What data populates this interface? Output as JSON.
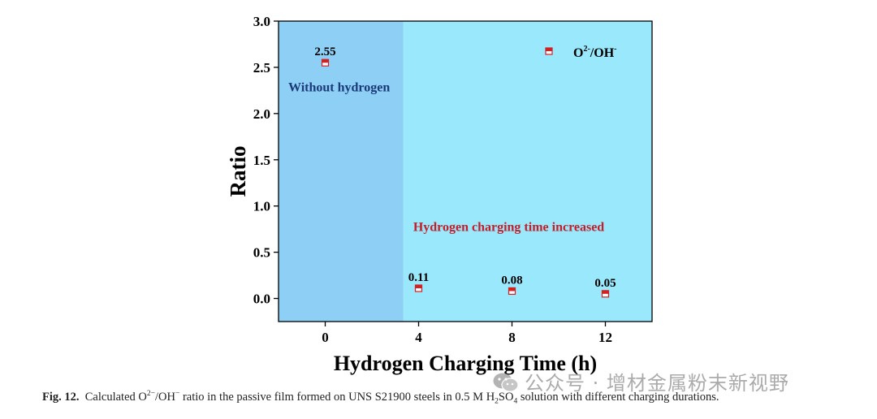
{
  "chart_data": {
    "type": "scatter",
    "x": [
      0,
      4,
      8,
      12
    ],
    "y": [
      2.55,
      0.11,
      0.08,
      0.05
    ],
    "data_labels": [
      "2.55",
      "0.11",
      "0.08",
      "0.05"
    ],
    "xlabel": "Hydrogen Charging Time (h)",
    "ylabel": "Ratio",
    "xticks": [
      "0",
      "4",
      "8",
      "12"
    ],
    "yticks": [
      "0.0",
      "0.5",
      "1.0",
      "1.5",
      "2.0",
      "2.5",
      "3.0"
    ],
    "xlim": [
      -2,
      14
    ],
    "ylim": [
      -0.25,
      3.0
    ],
    "grid": false,
    "legend": {
      "placement": "top-right",
      "entries": [
        {
          "name_base": "O",
          "name_sup1": "2-",
          "name_mid": "/OH",
          "name_sup2": "-"
        }
      ]
    },
    "marker": {
      "shape": "half-filled-square",
      "color": "#d42020"
    },
    "regions": [
      {
        "x_range": [
          -2,
          3.35
        ],
        "color": "#8dcff5",
        "label": "Without hydrogen",
        "label_color": "#1b3a7a"
      },
      {
        "x_range": [
          3.35,
          14
        ],
        "color": "#99e8fb",
        "label": "Hydrogen charging time increased",
        "label_color": "#c41e2a"
      }
    ]
  },
  "caption": {
    "fig_label": "Fig. 12.",
    "text_1": "Calculated O",
    "sup_1": "2−",
    "text_2": "/OH",
    "sup_2": "−",
    "text_3": " ratio in the passive film formed on UNS S21900 steels in 0.5 M H",
    "sub_1": "2",
    "text_4": "SO",
    "sub_2": "4",
    "text_5": " solution with different charging durations."
  },
  "watermark": {
    "text": "公众号 · 增材金属粉末新视野",
    "icon": "wechat-icon"
  }
}
